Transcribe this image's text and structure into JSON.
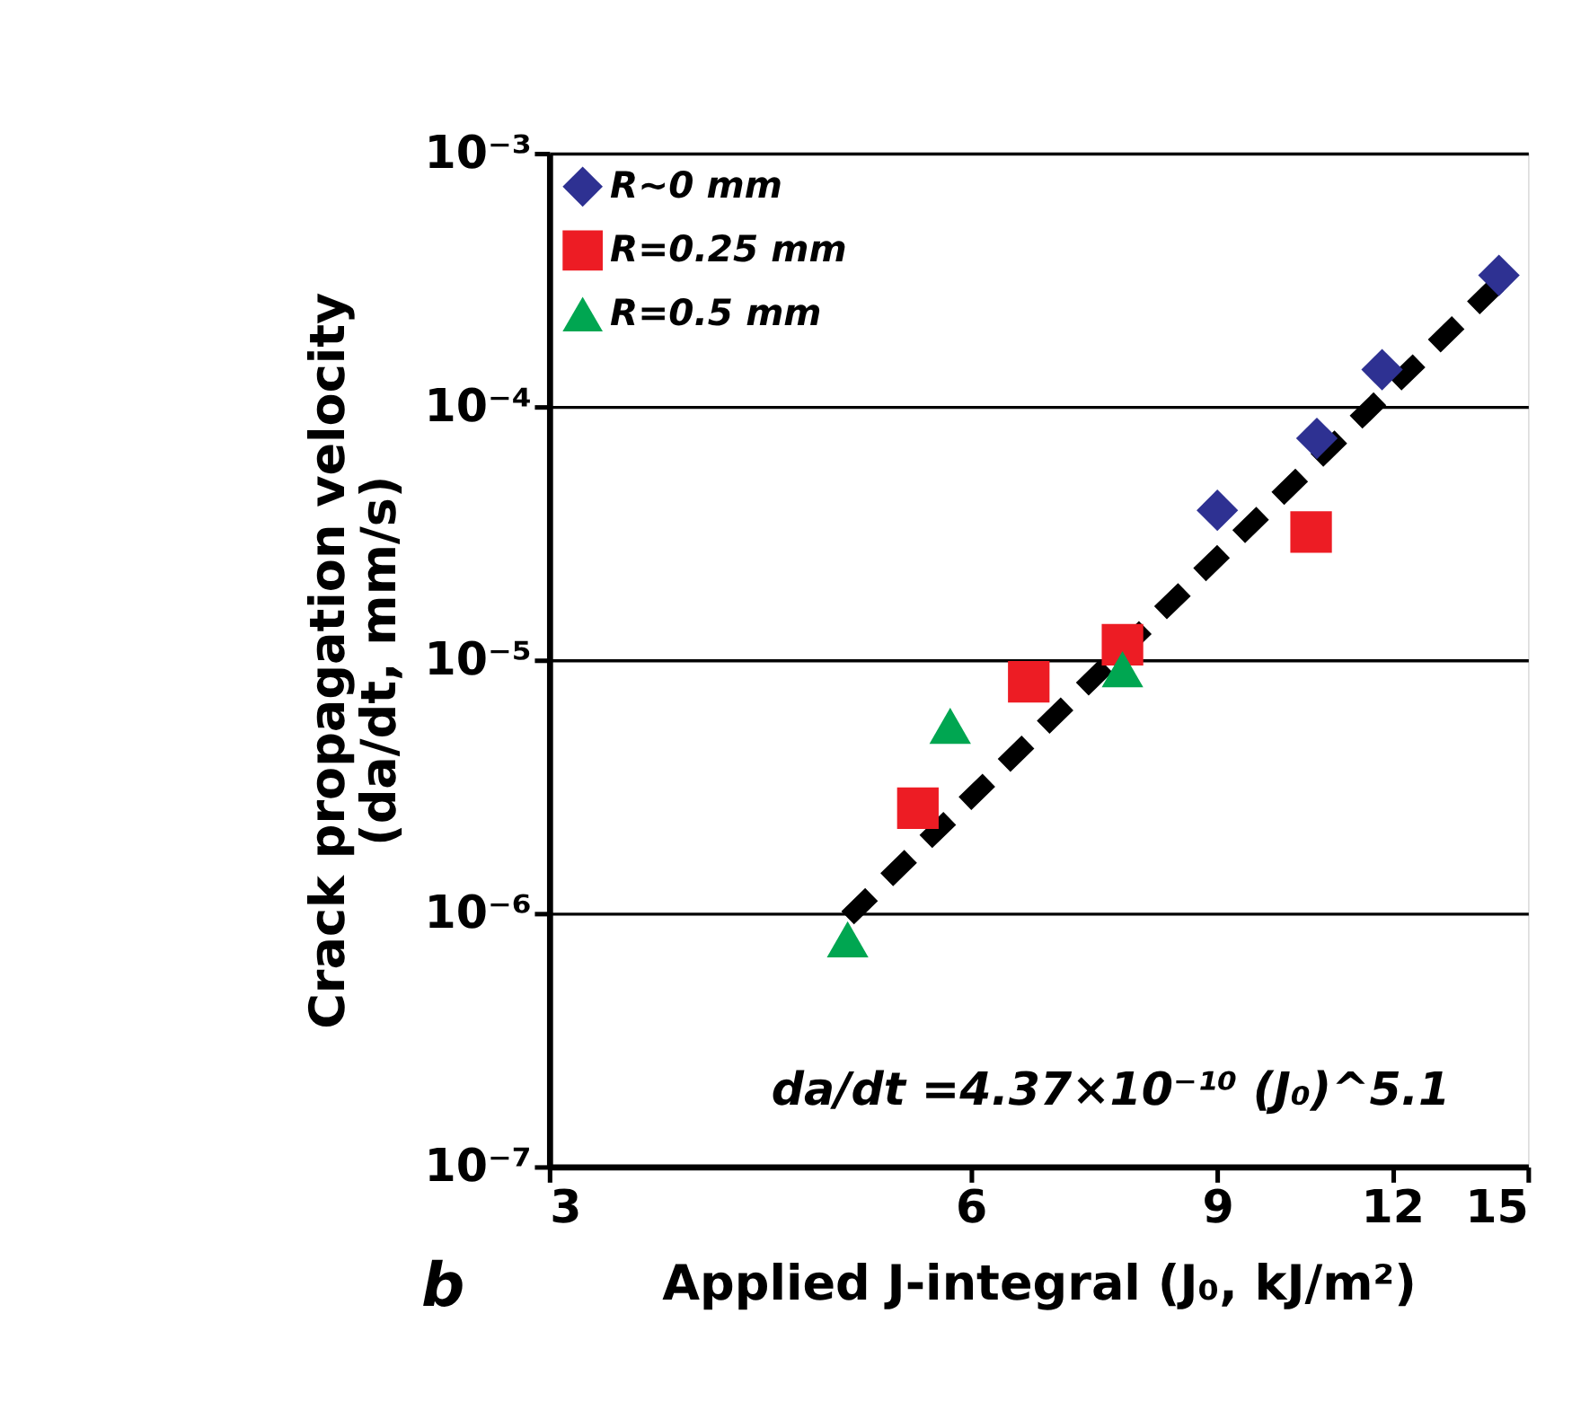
{
  "chart_data": {
    "type": "scatter",
    "xlabel": "Applied J-integral (J₀, kJ/m²)",
    "ylabel": "Crack propagation velocity\n(da/dt, mm/s)",
    "log": "xy",
    "xlim": [
      3,
      15
    ],
    "xticks": [
      3,
      6,
      9,
      12,
      15
    ],
    "ylim": [
      1e-07,
      0.001
    ],
    "yticks": [
      {
        "value": 1e-07,
        "label": "10⁻⁷"
      },
      {
        "value": 1e-06,
        "label": "10⁻⁶"
      },
      {
        "value": 1e-05,
        "label": "10⁻⁵"
      },
      {
        "value": 0.0001,
        "label": "10⁻⁴"
      },
      {
        "value": 0.001,
        "label": "10⁻³"
      }
    ],
    "grid": "y",
    "legend": "top left",
    "series": [
      {
        "name": "R~0 mm",
        "color": "#2e3192",
        "marker": "diamond",
        "x": [
          9.0,
          10.6,
          11.8,
          14.3
        ],
        "values": [
          3.9e-05,
          7.5e-05,
          0.00014,
          0.00033
        ]
      },
      {
        "name": "R=0.25 mm",
        "color": "#ed1c24",
        "marker": "square",
        "x": [
          5.5,
          6.6,
          7.7,
          10.5
        ],
        "values": [
          2.6e-06,
          8.2e-06,
          1.15e-05,
          3.2e-05
        ]
      },
      {
        "name": "R=0.5 mm",
        "color": "#00a651",
        "marker": "triangle",
        "x": [
          4.9,
          5.8,
          7.7
        ],
        "values": [
          7.9e-07,
          5.5e-06,
          9.2e-06
        ]
      },
      {
        "type": "line",
        "color": "#000000",
        "marker": "none",
        "line_style": "dashed",
        "x": [
          4.9,
          14.4
        ],
        "values": [
          9.6e-07,
          0.00032
        ]
      }
    ],
    "annotations": [
      "da/dt =4.37×10⁻¹⁰ (J₀)^5.1",
      "b"
    ]
  }
}
